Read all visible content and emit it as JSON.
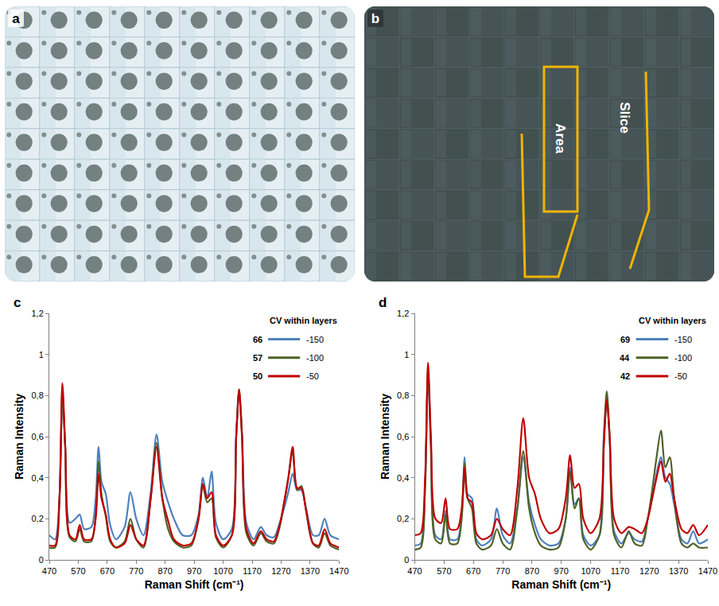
{
  "figure": {
    "image_panels": [
      {
        "letter": "a"
      },
      {
        "letter": "b",
        "labels": [
          "Area",
          "Slice"
        ]
      }
    ]
  },
  "chart_data": [
    {
      "panel": "c",
      "type": "line",
      "x_label": "Raman Shift (cm⁻¹)",
      "y_label": "Raman Intensity",
      "legend": "top right",
      "legend_title": "CV within layers",
      "grid": false,
      "xlim": [
        470,
        1470
      ],
      "xticks": [
        470,
        570,
        670,
        770,
        870,
        970,
        1070,
        1170,
        1270,
        1370,
        1470
      ],
      "ylim": [
        0,
        1.2
      ],
      "yticks": [
        0,
        {
          "value": 0.2,
          "label": "0,2"
        },
        {
          "value": 0.4,
          "label": "0,4"
        },
        {
          "value": 0.6,
          "label": "0,6"
        },
        {
          "value": 0.8,
          "label": "0,8"
        },
        1,
        {
          "value": 1.2,
          "label": "1,2"
        }
      ],
      "x": [
        470,
        490,
        505,
        515,
        525,
        540,
        560,
        575,
        590,
        615,
        630,
        640,
        650,
        665,
        680,
        700,
        730,
        750,
        770,
        795,
        820,
        840,
        860,
        880,
        900,
        930,
        960,
        985,
        1000,
        1015,
        1030,
        1045,
        1070,
        1100,
        1115,
        1125,
        1135,
        1150,
        1175,
        1200,
        1220,
        1245,
        1265,
        1280,
        1295,
        1310,
        1325,
        1340,
        1355,
        1380,
        1400,
        1420,
        1440,
        1470
      ],
      "series": [
        {
          "name": "-150",
          "cv": 66,
          "color": "#4f81bd",
          "values": [
            0.12,
            0.1,
            0.3,
            0.78,
            0.55,
            0.18,
            0.2,
            0.22,
            0.15,
            0.16,
            0.3,
            0.55,
            0.38,
            0.32,
            0.17,
            0.1,
            0.16,
            0.33,
            0.2,
            0.12,
            0.33,
            0.61,
            0.38,
            0.28,
            0.2,
            0.12,
            0.12,
            0.22,
            0.4,
            0.3,
            0.43,
            0.18,
            0.1,
            0.15,
            0.6,
            0.82,
            0.62,
            0.18,
            0.1,
            0.16,
            0.12,
            0.11,
            0.18,
            0.25,
            0.33,
            0.42,
            0.34,
            0.34,
            0.26,
            0.12,
            0.12,
            0.2,
            0.12,
            0.1
          ]
        },
        {
          "name": "-100",
          "cv": 57,
          "color": "#4f6228",
          "values": [
            0.06,
            0.06,
            0.3,
            0.82,
            0.55,
            0.11,
            0.09,
            0.15,
            0.09,
            0.09,
            0.22,
            0.48,
            0.32,
            0.21,
            0.09,
            0.06,
            0.09,
            0.2,
            0.1,
            0.06,
            0.3,
            0.57,
            0.3,
            0.15,
            0.09,
            0.06,
            0.07,
            0.2,
            0.36,
            0.28,
            0.3,
            0.11,
            0.06,
            0.12,
            0.6,
            0.83,
            0.6,
            0.13,
            0.07,
            0.13,
            0.09,
            0.08,
            0.16,
            0.27,
            0.4,
            0.53,
            0.34,
            0.36,
            0.25,
            0.08,
            0.06,
            0.13,
            0.07,
            0.05
          ]
        },
        {
          "name": "-50",
          "cv": 50,
          "color": "#c00000",
          "values": [
            0.07,
            0.07,
            0.3,
            0.86,
            0.55,
            0.12,
            0.1,
            0.17,
            0.1,
            0.1,
            0.2,
            0.42,
            0.3,
            0.22,
            0.1,
            0.06,
            0.08,
            0.17,
            0.1,
            0.07,
            0.3,
            0.55,
            0.3,
            0.19,
            0.1,
            0.07,
            0.08,
            0.2,
            0.37,
            0.3,
            0.33,
            0.12,
            0.07,
            0.12,
            0.6,
            0.83,
            0.6,
            0.15,
            0.08,
            0.14,
            0.1,
            0.09,
            0.17,
            0.28,
            0.4,
            0.55,
            0.35,
            0.35,
            0.25,
            0.08,
            0.07,
            0.15,
            0.08,
            0.06
          ]
        }
      ]
    },
    {
      "panel": "d",
      "type": "line",
      "x_label": "Raman Shift (cm⁻¹)",
      "y_label": "Raman Intensity",
      "legend": "top right",
      "legend_title": "CV within layers",
      "grid": false,
      "xlim": [
        470,
        1470
      ],
      "xticks": [
        470,
        570,
        670,
        770,
        870,
        970,
        1070,
        1170,
        1270,
        1370,
        1470
      ],
      "ylim": [
        0,
        1.2
      ],
      "yticks": [
        0,
        {
          "value": 0.2,
          "label": "0,2"
        },
        {
          "value": 0.4,
          "label": "0,4"
        },
        {
          "value": 0.6,
          "label": "0,6"
        },
        {
          "value": 0.8,
          "label": "0,8"
        },
        1,
        {
          "value": 1.2,
          "label": "1,2"
        }
      ],
      "x": [
        470,
        490,
        505,
        515,
        525,
        540,
        560,
        575,
        590,
        615,
        630,
        640,
        650,
        665,
        680,
        700,
        730,
        750,
        770,
        795,
        820,
        840,
        860,
        880,
        900,
        930,
        960,
        985,
        1000,
        1015,
        1030,
        1045,
        1070,
        1100,
        1115,
        1125,
        1135,
        1150,
        1175,
        1200,
        1220,
        1245,
        1265,
        1280,
        1295,
        1310,
        1325,
        1340,
        1355,
        1380,
        1400,
        1420,
        1440,
        1470
      ],
      "series": [
        {
          "name": "-150",
          "cv": 69,
          "color": "#4f81bd",
          "values": [
            0.07,
            0.08,
            0.35,
            0.9,
            0.55,
            0.12,
            0.1,
            0.24,
            0.1,
            0.1,
            0.22,
            0.5,
            0.32,
            0.3,
            0.1,
            0.07,
            0.1,
            0.25,
            0.12,
            0.08,
            0.25,
            0.5,
            0.28,
            0.17,
            0.1,
            0.07,
            0.08,
            0.2,
            0.45,
            0.27,
            0.3,
            0.12,
            0.07,
            0.12,
            0.6,
            0.78,
            0.58,
            0.14,
            0.08,
            0.13,
            0.1,
            0.09,
            0.2,
            0.3,
            0.42,
            0.5,
            0.4,
            0.37,
            0.27,
            0.1,
            0.08,
            0.14,
            0.08,
            0.1
          ]
        },
        {
          "name": "-100",
          "cv": 44,
          "color": "#4f6228",
          "values": [
            0.05,
            0.06,
            0.35,
            0.93,
            0.55,
            0.1,
            0.08,
            0.22,
            0.08,
            0.08,
            0.2,
            0.47,
            0.3,
            0.25,
            0.08,
            0.05,
            0.07,
            0.15,
            0.08,
            0.05,
            0.25,
            0.53,
            0.25,
            0.13,
            0.07,
            0.05,
            0.06,
            0.2,
            0.43,
            0.25,
            0.3,
            0.1,
            0.05,
            0.12,
            0.6,
            0.82,
            0.6,
            0.12,
            0.06,
            0.14,
            0.08,
            0.07,
            0.2,
            0.34,
            0.5,
            0.63,
            0.45,
            0.5,
            0.3,
            0.08,
            0.06,
            0.08,
            0.06,
            0.06
          ]
        },
        {
          "name": "-50",
          "cv": 42,
          "color": "#c00000",
          "values": [
            0.12,
            0.13,
            0.4,
            0.96,
            0.6,
            0.2,
            0.18,
            0.3,
            0.15,
            0.15,
            0.25,
            0.45,
            0.3,
            0.28,
            0.13,
            0.1,
            0.12,
            0.2,
            0.15,
            0.12,
            0.35,
            0.69,
            0.4,
            0.32,
            0.2,
            0.13,
            0.15,
            0.3,
            0.51,
            0.35,
            0.37,
            0.2,
            0.13,
            0.2,
            0.55,
            0.78,
            0.6,
            0.2,
            0.13,
            0.16,
            0.15,
            0.13,
            0.2,
            0.3,
            0.4,
            0.48,
            0.38,
            0.42,
            0.3,
            0.15,
            0.13,
            0.17,
            0.12,
            0.17
          ]
        }
      ]
    }
  ]
}
